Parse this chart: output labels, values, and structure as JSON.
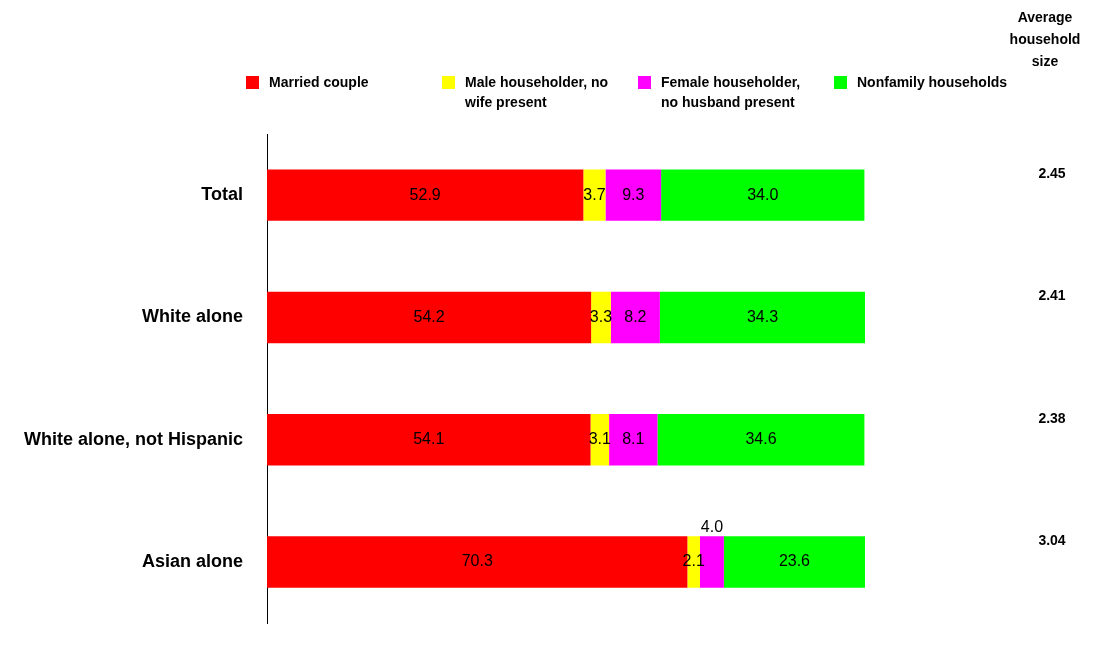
{
  "chart_data": {
    "type": "bar",
    "orientation": "horizontal",
    "stacked": true,
    "legend": "top",
    "grid": false,
    "tick_labels": "y",
    "xlim": [
      0,
      100
    ],
    "categories": [
      "Total",
      "White alone",
      "White alone, not Hispanic",
      "Asian alone"
    ],
    "series": [
      {
        "name": "Married couple",
        "color": "#ff0000",
        "values": [
          52.9,
          54.2,
          54.1,
          70.3
        ],
        "value_labels": [
          "52.9",
          "54.2",
          "54.1",
          "70.3"
        ]
      },
      {
        "name": "Male householder, no wife present",
        "color": "#ffff00",
        "values": [
          3.7,
          3.3,
          3.1,
          2.1
        ],
        "value_labels": [
          "3.7",
          "3.3",
          "3.1",
          "2.1"
        ]
      },
      {
        "name": "Female householder, no husband present",
        "color": "#ff00ff",
        "values": [
          9.3,
          8.2,
          8.1,
          4.0
        ],
        "value_labels": [
          "9.3",
          "8.2",
          "8.1",
          "4.0"
        ]
      },
      {
        "name": "Nonfamily households",
        "color": "#00ff00",
        "values": [
          34.0,
          34.3,
          34.6,
          23.6
        ],
        "value_labels": [
          "34.0",
          "34.3",
          "34.6",
          "23.6"
        ]
      }
    ],
    "annotations": [
      "Average household size",
      "2.45",
      "2.41",
      "2.38",
      "3.04"
    ]
  }
}
